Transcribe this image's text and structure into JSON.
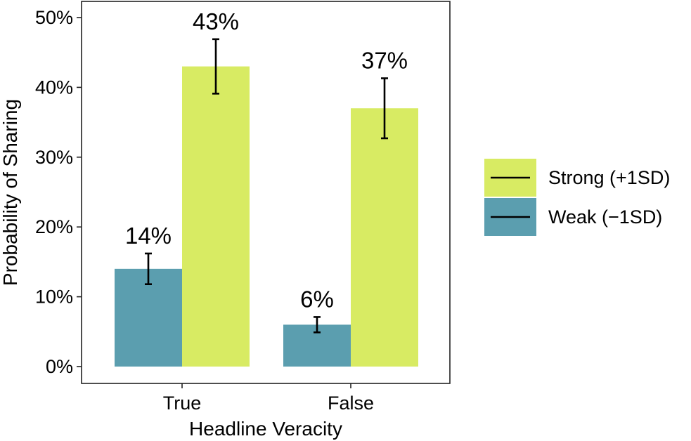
{
  "chart_data": {
    "type": "bar",
    "xlabel": "Headline Veracity",
    "ylabel": "Probability of Sharing",
    "categories": [
      "True",
      "False"
    ],
    "ylim": [
      0,
      50
    ],
    "yticks": [
      0,
      10,
      20,
      30,
      40,
      50
    ],
    "ytick_labels": [
      "0%",
      "10%",
      "20%",
      "30%",
      "40%",
      "50%"
    ],
    "grid": false,
    "legend_position": "right",
    "series": [
      {
        "name": "Weak (−1SD)",
        "color": "#5b9eaf",
        "values": [
          14,
          6
        ],
        "error_low": [
          11.8,
          4.9
        ],
        "error_high": [
          16.2,
          7.1
        ],
        "labels": [
          "14%",
          "6%"
        ]
      },
      {
        "name": "Strong (+1SD)",
        "color": "#d8eb63",
        "values": [
          43,
          37
        ],
        "error_low": [
          39.1,
          32.7
        ],
        "error_high": [
          46.9,
          41.3
        ],
        "labels": [
          "43%",
          "37%"
        ]
      }
    ],
    "legend_order": [
      1,
      0
    ]
  }
}
